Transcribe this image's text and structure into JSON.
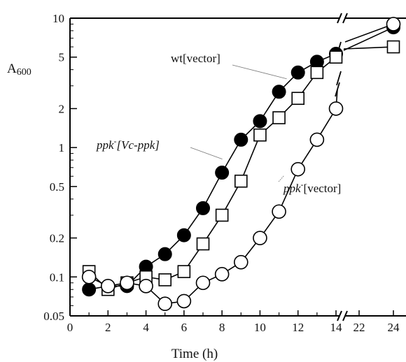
{
  "chart_data": {
    "type": "scatter",
    "title": "",
    "xlabel": "Time (h)",
    "ylabel": "A600",
    "yscale": "log",
    "ylim": [
      0.05,
      10
    ],
    "xlim": [
      0,
      24
    ],
    "x_axis_break": {
      "from": 14,
      "to": 22
    },
    "x_ticks": [
      0,
      2,
      4,
      6,
      8,
      10,
      12,
      14,
      22,
      24
    ],
    "y_ticks": [
      {
        "value": 10,
        "label": "10"
      },
      {
        "value": 5,
        "label": "5"
      },
      {
        "value": 2,
        "label": "2"
      },
      {
        "value": 1,
        "label": "1"
      },
      {
        "value": 0.5,
        "label": "0.5"
      },
      {
        "value": 0.2,
        "label": "0.2"
      },
      {
        "value": 0.1,
        "label": "0.1"
      },
      {
        "value": 0.05,
        "label": "0.05"
      }
    ],
    "ylabel_main": "A",
    "ylabel_sub": "600",
    "series": [
      {
        "marker": "filled-circle",
        "x": [
          1,
          2,
          3,
          4,
          5,
          6,
          7,
          8,
          9,
          10,
          11,
          12,
          13,
          14,
          24
        ],
        "y": [
          0.08,
          0.085,
          0.085,
          0.12,
          0.15,
          0.21,
          0.34,
          0.64,
          1.15,
          1.6,
          2.7,
          3.8,
          4.6,
          5.3,
          8.5
        ]
      },
      {
        "marker": "open-square",
        "x": [
          1,
          2,
          3,
          4,
          5,
          6,
          7,
          8,
          9,
          10,
          11,
          12,
          13,
          14,
          24
        ],
        "y": [
          0.11,
          0.08,
          0.09,
          0.1,
          0.095,
          0.11,
          0.18,
          0.3,
          0.55,
          1.25,
          1.7,
          2.4,
          3.8,
          5.0,
          6.0
        ]
      },
      {
        "marker": "open-circle",
        "x": [
          1,
          2,
          3,
          4,
          5,
          6,
          7,
          8,
          9,
          10,
          11,
          12,
          13,
          14,
          24
        ],
        "y": [
          0.1,
          0.085,
          0.09,
          0.085,
          0.062,
          0.065,
          0.09,
          0.105,
          0.13,
          0.2,
          0.32,
          0.68,
          1.15,
          2.0,
          9.0
        ]
      }
    ],
    "annotations": [
      {
        "text": "wt[vector]",
        "x": 10.3,
        "y": 3.4
      },
      {
        "text_main": "ppk",
        "text_sup": "-",
        "text_bracket": "[Vc-ppk]",
        "x": 7.5,
        "y": 0.9
      },
      {
        "text_main": "ppk",
        "text_sup": "-",
        "text_bracket": "[vector]",
        "x": 11.4,
        "y": 0.72
      }
    ]
  }
}
